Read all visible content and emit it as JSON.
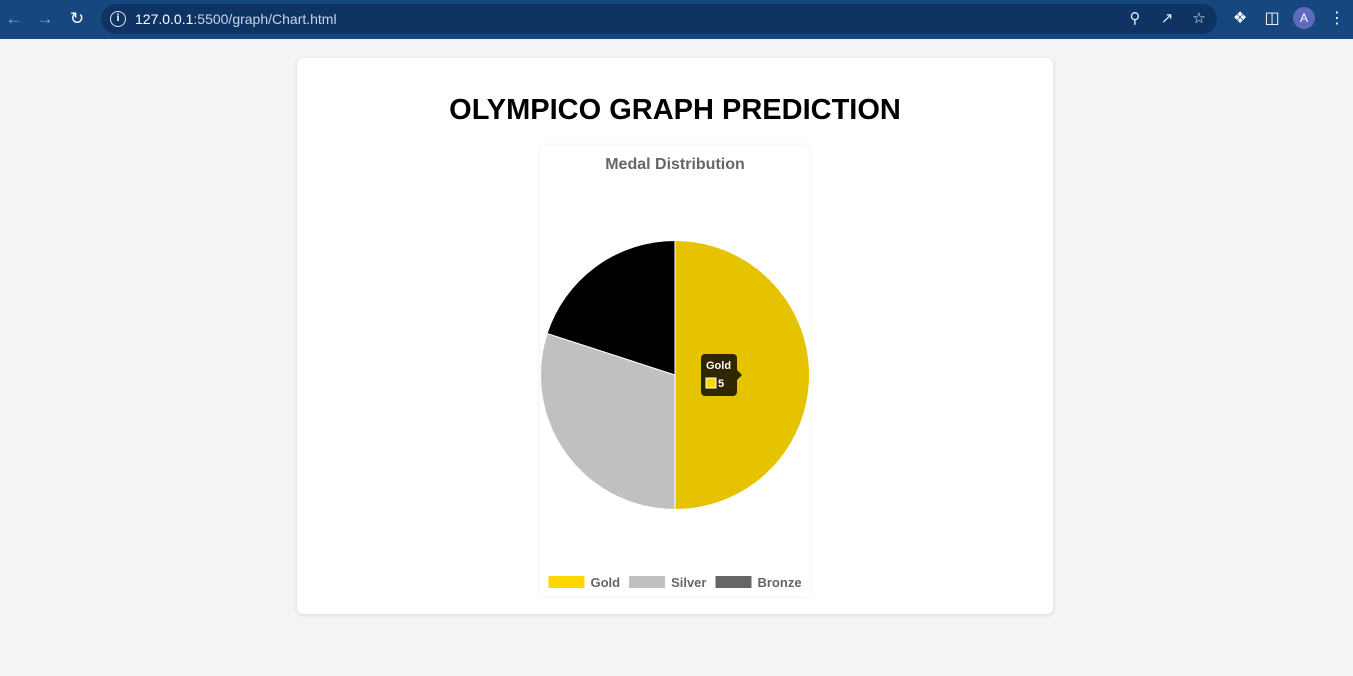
{
  "browser": {
    "url_host": "127.0.0.1",
    "url_path": ":5500/graph/Chart.html",
    "avatar_initial": "A"
  },
  "page": {
    "title": "OLYMPICO GRAPH PREDICTION"
  },
  "chart_data": {
    "type": "pie",
    "title": "Medal Distribution",
    "categories": [
      "Gold",
      "Silver",
      "Bronze"
    ],
    "values": [
      5,
      3,
      2
    ],
    "colors": [
      "#e6c300",
      "#c0c0c0",
      "#000000"
    ],
    "legend_colors": [
      "#ffd700",
      "#c0c0c0",
      "#666666"
    ],
    "legend_position": "bottom",
    "tooltip": {
      "label": "Gold",
      "value": "5",
      "swatch_color": "#ffd700"
    }
  }
}
